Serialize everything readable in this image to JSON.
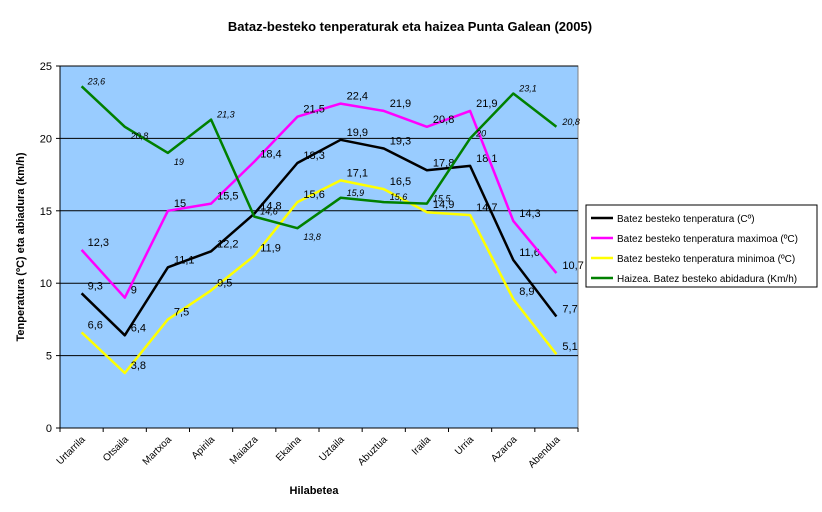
{
  "chart_data": {
    "type": "line",
    "title": "Bataz-besteko tenperaturak eta haizea Punta Galean (2005)",
    "xlabel": "Hilabetea",
    "ylabel": "Tenperatura (ºC)  eta abiadura (km/h)",
    "ylim": [
      0,
      25
    ],
    "yticks": [
      0,
      5,
      10,
      15,
      20,
      25
    ],
    "grid": true,
    "legend_position": "right",
    "plot_background": "#99ccff",
    "categories": [
      "Urtarrila",
      "Otsaila",
      "Martxoa",
      "Apirila",
      "Maiatza",
      "Ekaina",
      "Uztaila",
      "Abuztua",
      "Iraila",
      "Urria",
      "Azaroa",
      "Abendua"
    ],
    "series": [
      {
        "name": "Batez besteko tenperatura (Cº)",
        "color": "#000000",
        "values": [
          9.3,
          6.4,
          11.1,
          12.2,
          14.8,
          18.3,
          19.9,
          19.3,
          17.8,
          18.1,
          11.6,
          7.7
        ],
        "labels": [
          "9,3",
          "6,4",
          "11,1",
          "12,2",
          "14,8",
          "18,3",
          "19,9",
          "19,3",
          "17,8",
          "18,1",
          "11,6",
          "7,7"
        ]
      },
      {
        "name": "Batez besteko tenperatura maximoa (ºC)",
        "color": "#ff00ff",
        "values": [
          12.3,
          9,
          15,
          15.5,
          18.4,
          21.5,
          22.4,
          21.9,
          20.8,
          21.9,
          14.3,
          10.7
        ],
        "labels": [
          "12,3",
          "9",
          "15",
          "15,5",
          "18,4",
          "21,5",
          "22,4",
          "21,9",
          "20,8",
          "21,9",
          "14,3",
          "10,7"
        ]
      },
      {
        "name": "Batez besteko tenperatura minimoa (ºC)",
        "color": "#ffff00",
        "values": [
          6.6,
          3.8,
          7.5,
          9.5,
          11.9,
          15.6,
          17.1,
          16.5,
          14.9,
          14.7,
          8.9,
          5.1
        ],
        "labels": [
          "6,6",
          "3,8",
          "7,5",
          "9,5",
          "11,9",
          "15,6",
          "17,1",
          "16,5",
          "14,9",
          "14,7",
          "8,9",
          "5,1"
        ]
      },
      {
        "name": "Haizea. Batez besteko abidadura (Km/h)",
        "color": "#008000",
        "values": [
          23.6,
          20.8,
          19,
          21.3,
          14.6,
          13.8,
          15.9,
          15.6,
          15.5,
          20,
          23.1,
          20.8
        ],
        "labels": [
          "23,6",
          "20,8",
          "19",
          "21,3",
          "14,6",
          "13,8",
          "15,9",
          "15,6",
          "15,5",
          "20",
          "23,1",
          "20,8"
        ]
      }
    ]
  }
}
